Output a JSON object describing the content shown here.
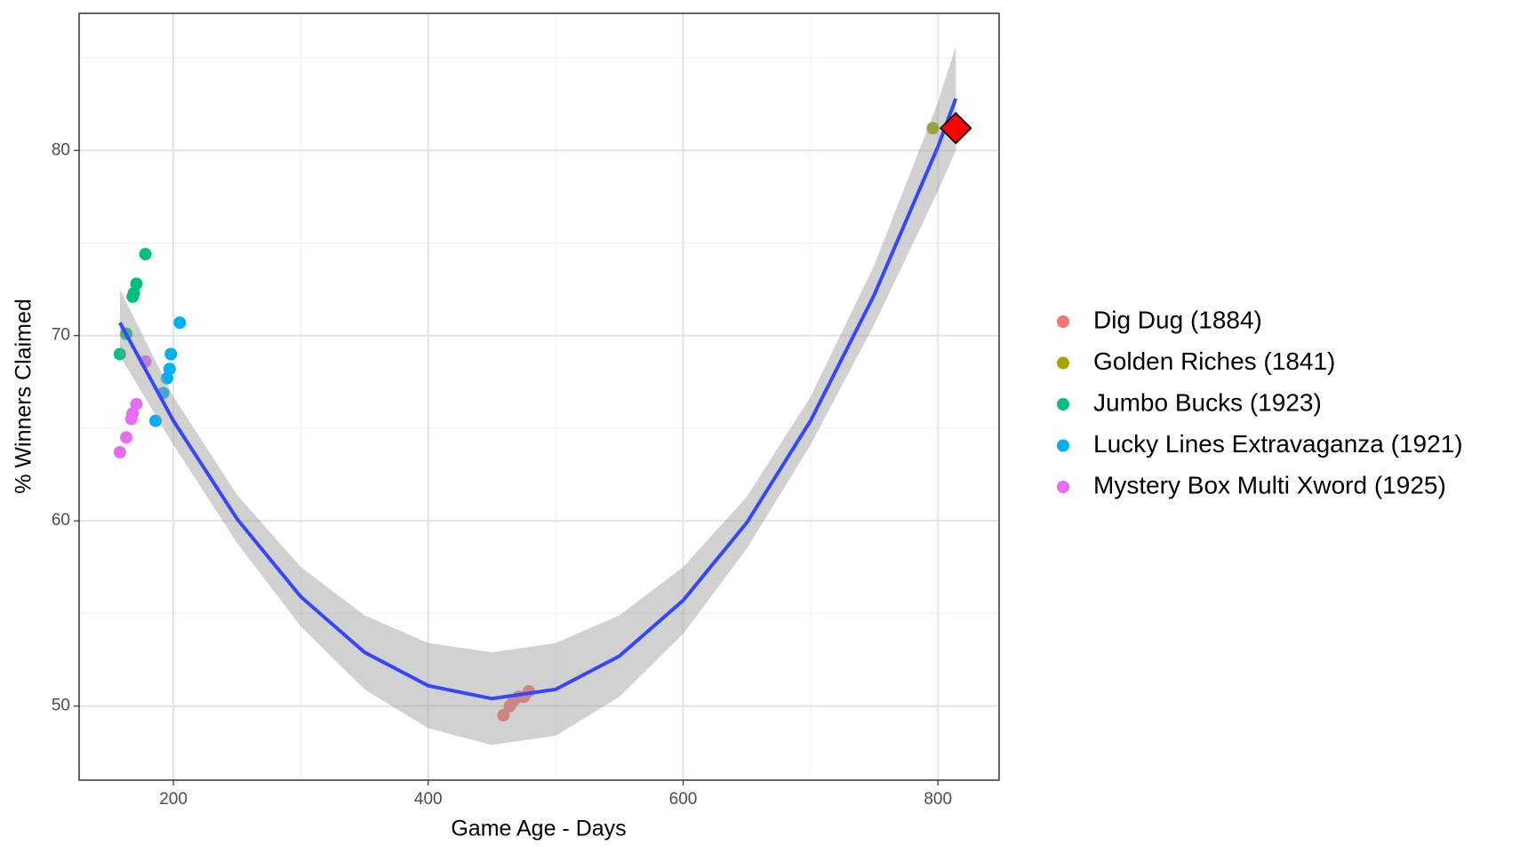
{
  "chart_data": {
    "type": "scatter",
    "x_label": "Game Age - Days",
    "y_label": "% Winners Claimed",
    "xlim": [
      126,
      848
    ],
    "ylim": [
      46.0,
      87.4
    ],
    "xticks": [
      200,
      400,
      600,
      800
    ],
    "yticks": [
      50,
      60,
      70,
      80
    ],
    "xminor": [
      300,
      500,
      700
    ],
    "yminor": [
      55,
      65,
      75,
      85
    ],
    "grid": true,
    "legend": "right",
    "series": [
      {
        "name": "Dig Dug (1884)",
        "color": "#F8766D",
        "x": [
          459,
          464,
          467,
          471,
          475,
          479
        ],
        "values": [
          49.5,
          50.0,
          50.3,
          50.5,
          50.5,
          50.8
        ]
      },
      {
        "name": "Golden Riches (1841)",
        "color": "#A3A500",
        "x": [
          796
        ],
        "values": [
          81.2
        ]
      },
      {
        "name": "Jumbo Bucks (1923)",
        "color": "#00BF7D",
        "x": [
          158,
          163,
          168,
          169,
          171,
          178
        ],
        "values": [
          69.0,
          70.1,
          72.1,
          72.3,
          72.8,
          74.4
        ]
      },
      {
        "name": "Lucky Lines Extravaganza (1921)",
        "color": "#00B0F6",
        "x": [
          186,
          192,
          195,
          197,
          198,
          205
        ],
        "values": [
          65.4,
          66.9,
          67.7,
          68.2,
          69.0,
          70.7
        ]
      },
      {
        "name": "Mystery Box Multi Xword (1925)",
        "color": "#E76BF3",
        "x": [
          158,
          163,
          167,
          168,
          171,
          178
        ],
        "values": [
          63.7,
          64.5,
          65.5,
          65.8,
          66.3,
          68.6
        ]
      }
    ],
    "trend": {
      "color": "#3347ff",
      "band_color": "#999999",
      "x": [
        158,
        200,
        250,
        300,
        350,
        400,
        450,
        500,
        550,
        600,
        650,
        700,
        750,
        800,
        814
      ],
      "values": [
        70.7,
        65.4,
        60.1,
        55.9,
        52.9,
        51.1,
        50.4,
        50.9,
        52.7,
        55.7,
        59.9,
        65.4,
        72.2,
        80.2,
        82.8
      ],
      "lower": [
        68.9,
        64.1,
        58.8,
        54.3,
        50.9,
        48.8,
        47.9,
        48.4,
        50.5,
        53.9,
        58.5,
        64.1,
        70.6,
        77.8,
        80.0
      ],
      "upper": [
        72.5,
        66.7,
        61.4,
        57.5,
        54.9,
        53.4,
        52.9,
        53.4,
        54.9,
        57.5,
        61.3,
        66.7,
        73.8,
        82.6,
        85.6
      ]
    },
    "highlight": {
      "x": 814,
      "y": 81.2,
      "color": "#ff0000"
    }
  }
}
